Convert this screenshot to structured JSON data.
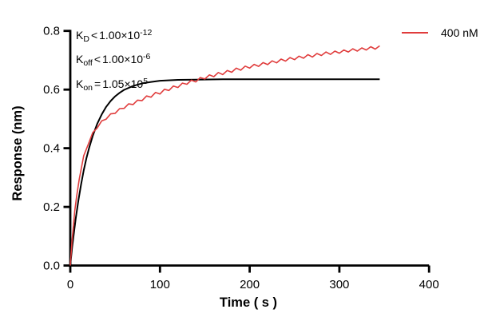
{
  "figure": {
    "background": "#ffffff",
    "axis_color": "#000000"
  },
  "annotation": {
    "lines": [
      {
        "symbol": "K",
        "sub": "D",
        "op": "<",
        "value": "1.00×10",
        "exp": "-12"
      },
      {
        "symbol": "K",
        "sub": "off",
        "op": "<",
        "value": "1.00×10",
        "exp": "-6"
      },
      {
        "symbol": "K",
        "sub": "on",
        "op": "=",
        "value": "1.05×10",
        "exp": "5"
      }
    ]
  },
  "chart_data": {
    "type": "line",
    "title": "",
    "xlabel": "Time ( s )",
    "ylabel": "Response (nm)",
    "xlim": [
      0,
      400
    ],
    "ylim": [
      0,
      0.8
    ],
    "x_ticks": [
      0,
      100,
      200,
      300,
      400
    ],
    "y_ticks": [
      0.0,
      0.2,
      0.4,
      0.6,
      0.8
    ],
    "x_tick_labels": [
      "0",
      "100",
      "200",
      "300",
      "400"
    ],
    "y_tick_labels": [
      "0.0",
      "0.2",
      "0.4",
      "0.6",
      "0.8"
    ],
    "grid": false,
    "legend": {
      "position": "top-right",
      "entries": [
        {
          "label": "400 nM",
          "color": "#e03c3c"
        }
      ]
    },
    "series": [
      {
        "name": "400 nM measured",
        "color": "#e03c3c",
        "points": [
          [
            0,
            0.0
          ],
          [
            2,
            0.084
          ],
          [
            3,
            0.12
          ],
          [
            5,
            0.186
          ],
          [
            7,
            0.235
          ],
          [
            10,
            0.294
          ],
          [
            15,
            0.374
          ],
          [
            20,
            0.413
          ],
          [
            25,
            0.453
          ],
          [
            30,
            0.469
          ],
          [
            35,
            0.493
          ],
          [
            40,
            0.499
          ],
          [
            45,
            0.517
          ],
          [
            50,
            0.519
          ],
          [
            55,
            0.535
          ],
          [
            60,
            0.536
          ],
          [
            65,
            0.551
          ],
          [
            70,
            0.549
          ],
          [
            75,
            0.564
          ],
          [
            80,
            0.562
          ],
          [
            85,
            0.578
          ],
          [
            90,
            0.574
          ],
          [
            95,
            0.59
          ],
          [
            100,
            0.585
          ],
          [
            105,
            0.601
          ],
          [
            110,
            0.597
          ],
          [
            115,
            0.612
          ],
          [
            120,
            0.607
          ],
          [
            125,
            0.622
          ],
          [
            130,
            0.618
          ],
          [
            135,
            0.632
          ],
          [
            140,
            0.626
          ],
          [
            145,
            0.641
          ],
          [
            150,
            0.636
          ],
          [
            155,
            0.65
          ],
          [
            160,
            0.644
          ],
          [
            165,
            0.658
          ],
          [
            170,
            0.651
          ],
          [
            175,
            0.665
          ],
          [
            180,
            0.659
          ],
          [
            185,
            0.673
          ],
          [
            190,
            0.666
          ],
          [
            195,
            0.68
          ],
          [
            200,
            0.673
          ],
          [
            205,
            0.686
          ],
          [
            210,
            0.679
          ],
          [
            215,
            0.692
          ],
          [
            220,
            0.685
          ],
          [
            225,
            0.698
          ],
          [
            230,
            0.691
          ],
          [
            235,
            0.704
          ],
          [
            240,
            0.697
          ],
          [
            245,
            0.709
          ],
          [
            250,
            0.702
          ],
          [
            255,
            0.714
          ],
          [
            260,
            0.707
          ],
          [
            265,
            0.719
          ],
          [
            270,
            0.711
          ],
          [
            275,
            0.723
          ],
          [
            280,
            0.716
          ],
          [
            285,
            0.728
          ],
          [
            290,
            0.72
          ],
          [
            295,
            0.731
          ],
          [
            300,
            0.724
          ],
          [
            305,
            0.735
          ],
          [
            310,
            0.728
          ],
          [
            315,
            0.739
          ],
          [
            320,
            0.731
          ],
          [
            325,
            0.742
          ],
          [
            330,
            0.735
          ],
          [
            335,
            0.746
          ],
          [
            340,
            0.738
          ],
          [
            345,
            0.749
          ]
        ]
      },
      {
        "name": "fit",
        "color": "#000000",
        "points": [
          [
            0,
            0.0
          ],
          [
            1,
            0.03
          ],
          [
            2,
            0.059
          ],
          [
            4,
            0.11
          ],
          [
            6,
            0.158
          ],
          [
            9,
            0.221
          ],
          [
            12,
            0.276
          ],
          [
            15,
            0.324
          ],
          [
            18,
            0.366
          ],
          [
            21,
            0.401
          ],
          [
            25,
            0.442
          ],
          [
            30,
            0.483
          ],
          [
            35,
            0.515
          ],
          [
            40,
            0.541
          ],
          [
            45,
            0.561
          ],
          [
            50,
            0.577
          ],
          [
            55,
            0.589
          ],
          [
            60,
            0.599
          ],
          [
            70,
            0.612
          ],
          [
            80,
            0.621
          ],
          [
            90,
            0.626
          ],
          [
            100,
            0.63
          ],
          [
            120,
            0.633
          ],
          [
            140,
            0.634
          ],
          [
            170,
            0.635
          ],
          [
            200,
            0.635
          ],
          [
            250,
            0.635
          ],
          [
            300,
            0.635
          ],
          [
            345,
            0.635
          ]
        ]
      }
    ]
  }
}
